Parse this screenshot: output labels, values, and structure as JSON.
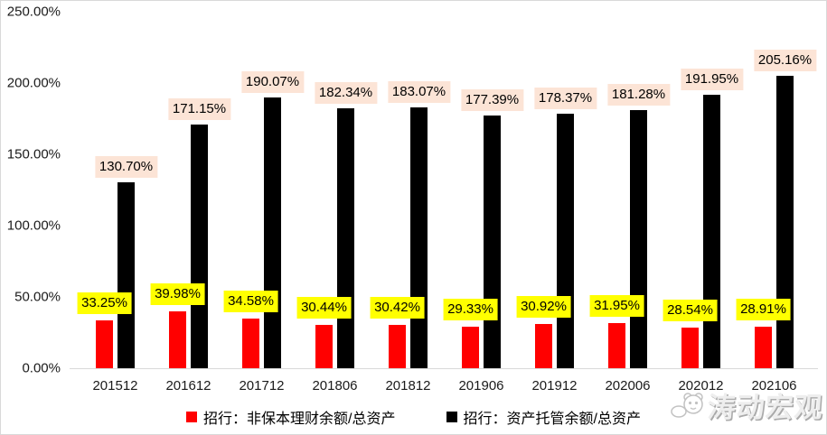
{
  "chart_data": {
    "type": "bar",
    "title": "",
    "xlabel": "",
    "ylabel": "",
    "categories": [
      "201512",
      "201612",
      "201712",
      "201806",
      "201812",
      "201906",
      "201912",
      "202006",
      "202012",
      "202106"
    ],
    "series": [
      {
        "name": "招行：非保本理财余额/总资产",
        "color": "#ff0000",
        "label_bg": "#ffff00",
        "values": [
          33.25,
          39.98,
          34.58,
          30.44,
          30.42,
          29.33,
          30.92,
          31.95,
          28.54,
          28.91
        ]
      },
      {
        "name": "招行：资产托管余额/总资产",
        "color": "#000000",
        "label_bg": "#fce4d6",
        "values": [
          130.7,
          171.15,
          190.07,
          182.34,
          183.07,
          177.39,
          178.37,
          181.28,
          191.95,
          205.16
        ]
      }
    ],
    "ylim": [
      0,
      250
    ],
    "y_ticks": [
      {
        "value": 0,
        "label": "0.00%"
      },
      {
        "value": 50,
        "label": "50.00%"
      },
      {
        "value": 100,
        "label": "100.00%"
      },
      {
        "value": 150,
        "label": "150.00%"
      },
      {
        "value": 200,
        "label": "200.00%"
      },
      {
        "value": 250,
        "label": "250.00%"
      }
    ],
    "grid": false,
    "legend_position": "bottom",
    "data_label_format": "0.00%"
  },
  "watermark": {
    "text": "涛动宏观"
  }
}
